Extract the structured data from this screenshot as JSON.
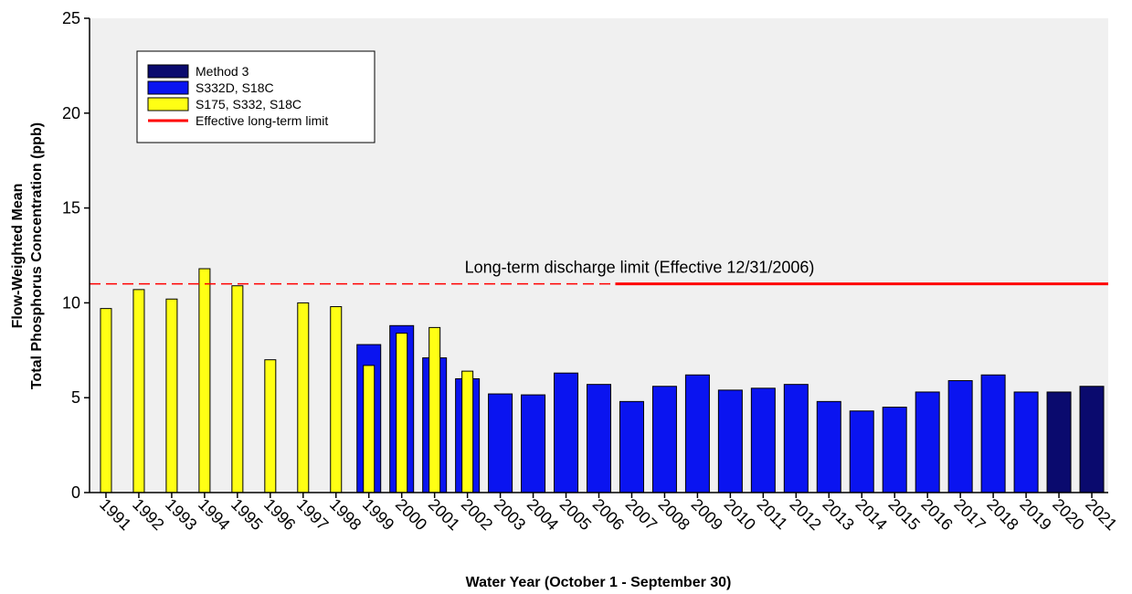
{
  "chart_data": {
    "type": "bar",
    "categories": [
      "1991",
      "1992",
      "1993",
      "1994",
      "1995",
      "1996",
      "1997",
      "1998",
      "1999",
      "2000",
      "2001",
      "2002",
      "2003",
      "2004",
      "2005",
      "2006",
      "2007",
      "2008",
      "2009",
      "2010",
      "2011",
      "2012",
      "2013",
      "2014",
      "2015",
      "2016",
      "2017",
      "2018",
      "2019",
      "2020",
      "2021"
    ],
    "series": [
      {
        "name": "Method 3",
        "color": "#0a0a6e",
        "width": "wide",
        "values": [
          null,
          null,
          null,
          null,
          null,
          null,
          null,
          null,
          null,
          null,
          null,
          null,
          null,
          null,
          null,
          null,
          null,
          null,
          null,
          null,
          null,
          null,
          null,
          null,
          null,
          null,
          null,
          null,
          null,
          5.3,
          5.6
        ]
      },
      {
        "name": "S332D, S18C",
        "color": "#0a14f0",
        "width": "wide",
        "values": [
          null,
          null,
          null,
          null,
          null,
          null,
          null,
          null,
          7.8,
          8.8,
          7.1,
          6.0,
          5.2,
          5.15,
          6.3,
          5.7,
          4.8,
          5.6,
          6.2,
          5.4,
          5.5,
          5.7,
          4.8,
          4.3,
          4.5,
          5.3,
          5.9,
          6.2,
          5.3,
          null,
          null
        ]
      },
      {
        "name": "S175, S332, S18C",
        "color": "#ffff14",
        "width": "narrow",
        "values": [
          9.7,
          10.7,
          10.2,
          11.8,
          10.9,
          7.0,
          10.0,
          9.8,
          6.7,
          8.4,
          8.7,
          6.4,
          null,
          null,
          null,
          null,
          null,
          null,
          null,
          null,
          null,
          null,
          null,
          null,
          null,
          null,
          null,
          null,
          null,
          null,
          null
        ]
      }
    ],
    "limit": {
      "name": "Effective long-term limit",
      "value": 11,
      "color": "#ff0000"
    },
    "annotation": "Long-term discharge limit (Effective 12/31/2006)",
    "y_label": [
      "Flow-Weighted Mean",
      "Total Phosphorus Concentration (ppb)"
    ],
    "x_label": "Water Year (October 1 - September 30)",
    "ylim": [
      0,
      25
    ],
    "yticks": [
      0,
      5,
      10,
      15,
      20,
      25
    ],
    "grid": false
  }
}
